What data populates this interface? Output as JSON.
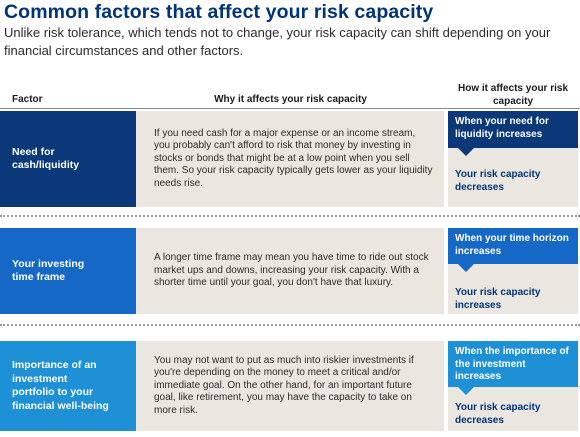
{
  "title": "Common factors that affect your risk capacity",
  "subtitle": "Unlike risk tolerance, which tends not to change, your risk capacity can shift depending on your financial circumstances and other factors.",
  "headers": {
    "factor": "Factor",
    "why": "Why it affects your risk capacity",
    "how": "How it affects your risk capacity"
  },
  "colors": {
    "title": "#003478",
    "row1": "#0a3879",
    "row2": "#1668c7",
    "row3": "#1e90d6",
    "panel": "#ebe7e0"
  },
  "rows": [
    {
      "factor": "Need for cash/liquidity",
      "why": "If you need cash for a major expense or an income stream, you probably can't afford to risk that money by investing in stocks or bonds that might be at a low point when you sell them. So your risk capacity typically gets lower as your liquidity needs rise.",
      "when": "When your need for liquidity increases",
      "result": "Your risk capacity decreases"
    },
    {
      "factor": "Your investing time frame",
      "why": "A longer time frame may mean you have time to ride out stock market ups and downs, increasing your risk capacity. With a shorter time until your goal, you don't have that luxury.",
      "when": "When your time horizon increases",
      "result": "Your risk capacity increases"
    },
    {
      "factor": "Importance of an investment portfolio to your financial well-being",
      "why": "You may not want to put as much into riskier investments if you're depending on the money to meet a critical and/or immediate goal. On the other hand, for an important future goal, like retirement, you may have the capacity to take on more risk.",
      "when": "When the importance of the investment increases",
      "result": "Your risk capacity decreases"
    }
  ]
}
